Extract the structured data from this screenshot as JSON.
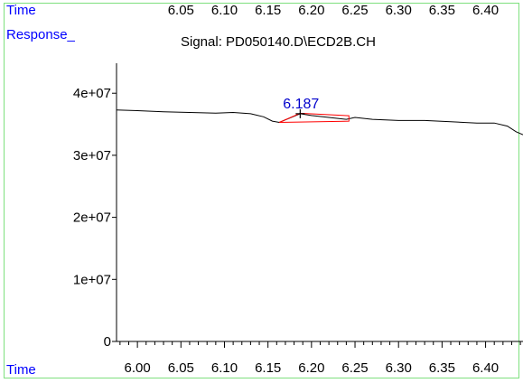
{
  "top_axis": {
    "label": "Time",
    "ticks": [
      "6.05",
      "6.10",
      "6.15",
      "6.20",
      "6.25",
      "6.30",
      "6.35",
      "6.40"
    ]
  },
  "y_axis_label": "Response_",
  "signal_title": "Signal: PD050140.D\\ECD2B.CH",
  "bottom_axis_label": "Time",
  "colors": {
    "label_blue": "#0000ff",
    "trace": "#000000",
    "baseline": "#ff0000",
    "frame": "#7ee07e",
    "annotation": "#0000cc"
  },
  "chart_data": {
    "type": "line",
    "title": "Signal: PD050140.D\\ECD2B.CH",
    "xlabel": "Time",
    "ylabel": "Response_",
    "xlim": [
      5.976,
      6.443
    ],
    "ylim": [
      0,
      46000000
    ],
    "x_ticks": [
      6.0,
      6.05,
      6.1,
      6.15,
      6.2,
      6.25,
      6.3,
      6.35,
      6.4
    ],
    "x_tick_labels": [
      "6.00",
      "6.05",
      "6.10",
      "6.15",
      "6.20",
      "6.25",
      "6.30",
      "6.35",
      "6.40"
    ],
    "x_minor_step": 0.01,
    "y_ticks": [
      0,
      10000000,
      20000000,
      30000000,
      40000000
    ],
    "y_tick_labels": [
      "0",
      "1e+07",
      "2e+07",
      "3e+07",
      "4e+07"
    ],
    "grid": false,
    "series": [
      {
        "x": [
          5.976,
          6.0,
          6.03,
          6.06,
          6.09,
          6.11,
          6.13,
          6.145,
          6.155,
          6.163,
          6.175,
          6.187,
          6.2,
          6.22,
          6.24,
          6.25,
          6.27,
          6.3,
          6.33,
          6.36,
          6.39,
          6.41,
          6.425,
          6.435,
          6.443
        ],
        "y": [
          37300000,
          37200000,
          37000000,
          36900000,
          36800000,
          36900000,
          36700000,
          36200000,
          35500000,
          35300000,
          36000000,
          36700000,
          36400000,
          36100000,
          35800000,
          36100000,
          35800000,
          35600000,
          35600000,
          35400000,
          35200000,
          35200000,
          34700000,
          33800000,
          33300000
        ]
      }
    ],
    "peaks": [
      {
        "label": "6.187",
        "apex_x": 6.187,
        "apex_y": 36700000,
        "baseline": [
          [
            6.163,
            35300000
          ],
          [
            6.243,
            35500000
          ]
        ]
      }
    ]
  }
}
